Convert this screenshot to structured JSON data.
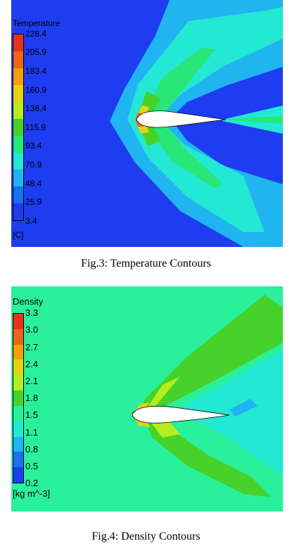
{
  "figures": [
    {
      "legend_title": "Temperature",
      "unit": "[C]",
      "ticks": [
        "228.4",
        "205.9",
        "183.4",
        "160.9",
        "138.4",
        "115.9",
        "93.4",
        "70.9",
        "48.4",
        "25.9",
        "3.4"
      ],
      "colors": [
        "#e8321e",
        "#f06418",
        "#f5a00a",
        "#e8d214",
        "#b4ee1e",
        "#46d22a",
        "#28e678",
        "#22e8d4",
        "#20b4f0",
        "#1a70f0",
        "#1e3cf0"
      ],
      "caption": "Fig.3: Temperature Contours"
    },
    {
      "legend_title": "Density",
      "unit": "[kg m^-3]",
      "ticks": [
        "3.3",
        "3.0",
        "2.7",
        "2.4",
        "2.1",
        "1.8",
        "1.5",
        "1.1",
        "0.8",
        "0.5",
        "0.2"
      ],
      "colors": [
        "#e8321e",
        "#f06418",
        "#f5a00a",
        "#e8d214",
        "#b4ee1e",
        "#46d22a",
        "#2af09c",
        "#22e8d4",
        "#20b4f0",
        "#1a70f0",
        "#1e3cf0"
      ],
      "caption": "Fig.4: Density Contours"
    }
  ]
}
